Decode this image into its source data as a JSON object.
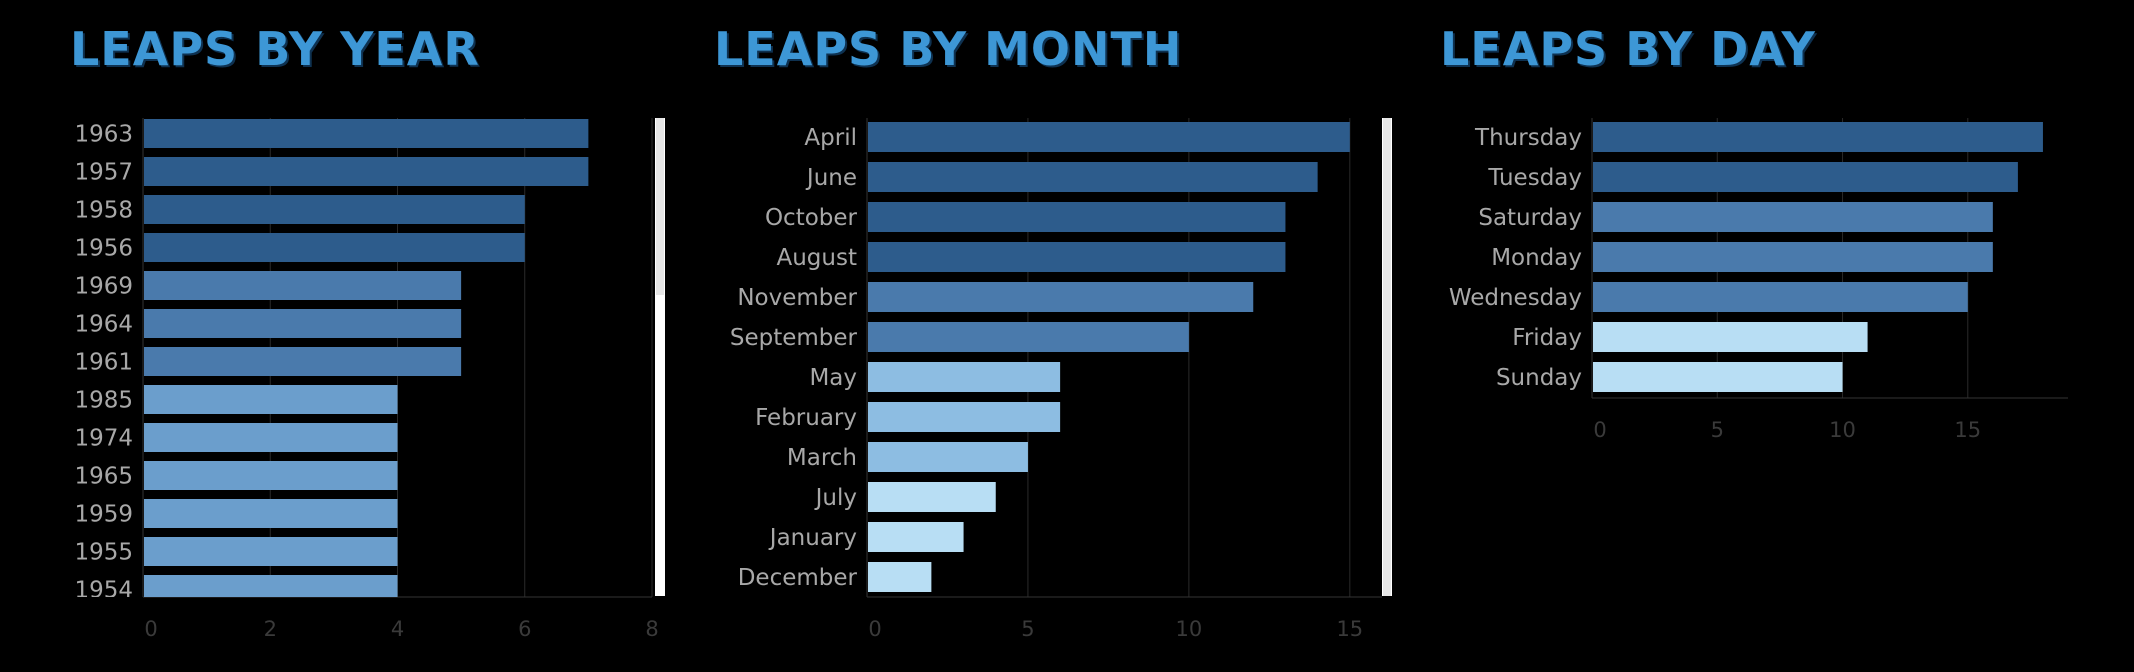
{
  "titles": {
    "year": "LEAPS BY YEAR",
    "month": "LEAPS BY MONTH",
    "day": "LEAPS BY DAY"
  },
  "colors": {
    "background": "#000000",
    "title": "#3d97d6",
    "bar_dark": "#2d5c8c",
    "bar_mid": "#4a7aac",
    "bar_light": "#6b9ecc",
    "bar_pale": "#8dbde2",
    "bar_palest": "#b8def4",
    "gridline": "#2a2a2a",
    "category_text": "#a8a8a8",
    "tick_text": "#3a3a3a",
    "scrollbar": "#e6e6e6"
  },
  "chart_data": [
    {
      "type": "bar",
      "orientation": "horizontal",
      "title": "LEAPS BY YEAR",
      "categories": [
        "1963",
        "1957",
        "1958",
        "1956",
        "1969",
        "1964",
        "1961",
        "1985",
        "1974",
        "1965",
        "1959",
        "1955",
        "1954"
      ],
      "values": [
        7,
        7,
        6,
        6,
        5,
        5,
        5,
        4,
        4,
        4,
        4,
        4,
        4
      ],
      "xticks": [
        0,
        2,
        4,
        6,
        8
      ],
      "xlim": [
        0,
        8
      ],
      "grid": true,
      "scrollable": true
    },
    {
      "type": "bar",
      "orientation": "horizontal",
      "title": "LEAPS BY MONTH",
      "categories": [
        "April",
        "June",
        "October",
        "August",
        "November",
        "September",
        "May",
        "February",
        "March",
        "July",
        "January",
        "December"
      ],
      "values": [
        15,
        14,
        13,
        13,
        12,
        10,
        6,
        6,
        5,
        4,
        3,
        2
      ],
      "xticks": [
        0,
        5,
        10,
        15
      ],
      "xlim": [
        0,
        16
      ],
      "grid": true,
      "scrollable": true
    },
    {
      "type": "bar",
      "orientation": "horizontal",
      "title": "LEAPS BY DAY",
      "categories": [
        "Thursday",
        "Tuesday",
        "Saturday",
        "Monday",
        "Wednesday",
        "Friday",
        "Sunday"
      ],
      "values": [
        18,
        17,
        16,
        16,
        15,
        11,
        10
      ],
      "xticks": [
        0,
        5,
        10,
        15
      ],
      "xlim": [
        0,
        19
      ],
      "grid": true,
      "scrollable": false
    }
  ]
}
